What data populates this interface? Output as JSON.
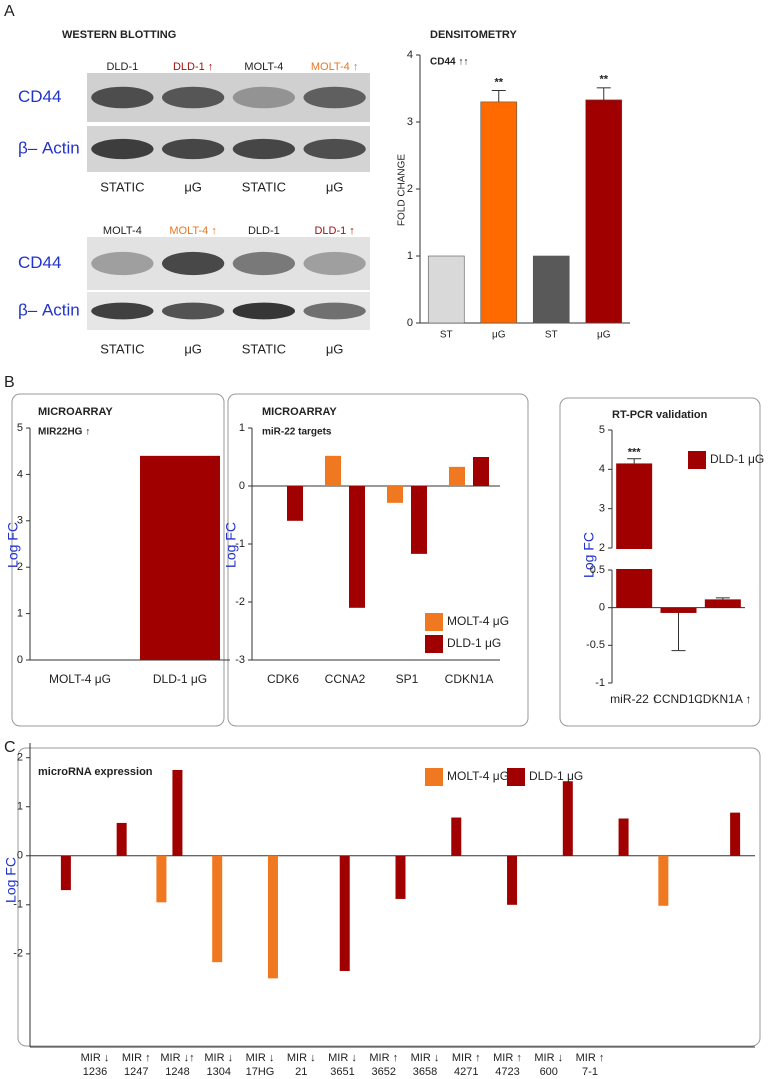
{
  "panel_labels": [
    "A",
    "B",
    "C"
  ],
  "western_blotting": {
    "title": "WESTERN BLOTTING",
    "lane_colors": [
      "#222222",
      "#a01010",
      "#222222",
      "#e87722",
      "#222222",
      "#e87722",
      "#222222",
      "#a01010"
    ],
    "blots": [
      {
        "lanes": [
          "DLD-1",
          "DLD-1 ↑",
          "MOLT-4",
          "MOLT-4 ↑"
        ],
        "rows": [
          "CD44",
          "β– Actin"
        ],
        "conditions": [
          "STATIC",
          "μG",
          "STATIC",
          "μG"
        ]
      },
      {
        "lanes": [
          "MOLT-4",
          "MOLT-4 ↑",
          "DLD-1",
          "DLD-1 ↑"
        ],
        "rows": [
          "CD44",
          "β– Actin"
        ],
        "conditions": [
          "STATIC",
          "μG",
          "STATIC",
          "μG"
        ]
      }
    ]
  },
  "chart_data": [
    {
      "type": "bar",
      "title": "DENSITOMETRY",
      "subtitle": "CD44 ↑↑",
      "ylabel": "FOLD CHANGE",
      "categories": [
        "ST",
        "μG",
        "ST",
        "μG"
      ],
      "values": [
        1,
        3.3,
        1,
        3.33
      ],
      "errors": [
        null,
        0.17,
        null,
        0.18
      ],
      "colors": [
        "#d9d9d9",
        "#ff6a00",
        "#595959",
        "#a00000"
      ],
      "significance": [
        null,
        "**",
        null,
        "**"
      ],
      "ylim": [
        0,
        4
      ],
      "yticks": [
        0,
        1,
        2,
        3,
        4
      ]
    },
    {
      "type": "bar",
      "title": "MICROARRAY",
      "subtitle": "MIR22HG ↑",
      "ylabel": "Log FC",
      "categories": [
        "MOLT-4 μG",
        "DLD-1 μG"
      ],
      "values": [
        0,
        4.4
      ],
      "color": "#a00000",
      "ylim": [
        0,
        5
      ],
      "yticks": [
        0,
        1,
        2,
        3,
        4,
        5
      ]
    },
    {
      "type": "grouped_bar",
      "title": "MICROARRAY",
      "subtitle": "miR-22 targets",
      "ylabel": "Log FC",
      "categories": [
        "CDK6",
        "CCNA2",
        "SP1",
        "CDKN1A"
      ],
      "series": [
        {
          "name": "MOLT-4 μG",
          "color": "#f07820",
          "values": [
            null,
            0.52,
            -0.29,
            0.33
          ]
        },
        {
          "name": "DLD-1 μG",
          "color": "#a00000",
          "values": [
            -0.6,
            -2.1,
            -1.17,
            0.5
          ]
        }
      ],
      "ylim": [
        -3,
        1
      ],
      "yticks": [
        -3,
        -2,
        -1,
        0,
        1
      ]
    },
    {
      "type": "broken_bar",
      "title": "RT-PCR validation",
      "ylabel": "Log FC",
      "categories": [
        "miR-22 ↑",
        "CCND1 ↓",
        "CDKN1A ↑"
      ],
      "series": [
        {
          "name": "DLD-1 μG",
          "color": "#a00000",
          "values": [
            4.15,
            -0.07,
            0.11
          ],
          "errors": [
            0.12,
            0.5,
            0.02
          ]
        }
      ],
      "significance": [
        "***",
        null,
        null
      ],
      "ylim": [
        -1,
        5
      ],
      "axis_break": [
        0.5,
        2
      ],
      "yticks": [
        -1,
        -0.5,
        0,
        0.5,
        2,
        3,
        4,
        5
      ]
    },
    {
      "type": "grouped_bar",
      "title": "microRNA expression",
      "ylabel": "Log FC",
      "categories": [
        [
          "MIR ↓",
          "1236"
        ],
        [
          "MIR ↑",
          "1247"
        ],
        [
          "MIR ↓↑",
          "1248"
        ],
        [
          "MIR ↓",
          "1304"
        ],
        [
          "MIR ↓",
          "17HG"
        ],
        [
          "MIR ↓",
          "21"
        ],
        [
          "MIR ↓",
          "3651"
        ],
        [
          "MIR ↑",
          "3652"
        ],
        [
          "MIR ↓",
          "3658"
        ],
        [
          "MIR ↑",
          "4271"
        ],
        [
          "MIR ↑",
          "4723"
        ],
        [
          "MIR ↓",
          "600"
        ],
        [
          "MIR ↑",
          "7-1"
        ]
      ],
      "series": [
        {
          "name": "MOLT-4 μG",
          "color": "#f07820",
          "values": [
            null,
            null,
            -0.95,
            -2.17,
            -2.5,
            null,
            null,
            null,
            null,
            null,
            null,
            -1.02,
            null
          ]
        },
        {
          "name": "DLD-1 μG",
          "color": "#a00000",
          "values": [
            -0.7,
            0.67,
            1.75,
            null,
            null,
            -2.35,
            -0.88,
            0.78,
            -1.0,
            1.52,
            0.76,
            null,
            0.88
          ]
        }
      ],
      "ylim": [
        -3.9,
        2.3
      ],
      "yticks": [
        -2,
        -1,
        0,
        1,
        2
      ]
    }
  ]
}
